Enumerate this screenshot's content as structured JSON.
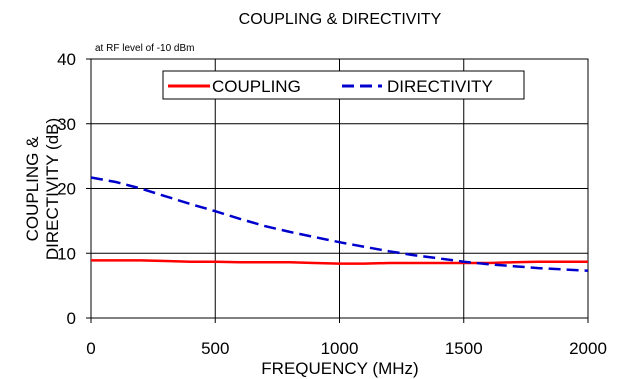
{
  "chart_data": {
    "type": "line",
    "title": "COUPLING & DIRECTIVITY",
    "annotation": "at RF level of -10 dBm",
    "xlabel": "FREQUENCY (MHz)",
    "ylabel_lines": [
      "COUPLING &",
      "DIRECTIVITY (dB)"
    ],
    "xlim": [
      0,
      2000
    ],
    "ylim": [
      0,
      40
    ],
    "xticks": [
      0,
      500,
      1000,
      1500,
      2000
    ],
    "yticks": [
      0,
      10,
      20,
      30,
      40
    ],
    "x_tick_labels": [
      "0",
      "500",
      "1000",
      "1500",
      "2000"
    ],
    "y_tick_labels": [
      "0",
      "10",
      "20",
      "30",
      "40"
    ],
    "grid": true,
    "legend_position": "top-center",
    "series": [
      {
        "name": "COUPLING",
        "color": "#ff0000",
        "style": "solid",
        "x": [
          0,
          100,
          200,
          300,
          400,
          500,
          600,
          700,
          800,
          900,
          1000,
          1100,
          1200,
          1300,
          1400,
          1500,
          1600,
          1700,
          1800,
          1900,
          2000
        ],
        "values": [
          8.9,
          8.9,
          8.9,
          8.8,
          8.7,
          8.7,
          8.6,
          8.6,
          8.6,
          8.5,
          8.4,
          8.4,
          8.5,
          8.5,
          8.5,
          8.5,
          8.5,
          8.6,
          8.7,
          8.7,
          8.7
        ]
      },
      {
        "name": "DIRECTIVITY",
        "color": "#0000cc",
        "style": "dashed",
        "x": [
          0,
          100,
          200,
          300,
          400,
          500,
          600,
          700,
          800,
          900,
          1000,
          1100,
          1200,
          1300,
          1400,
          1500,
          1600,
          1700,
          1800,
          1900,
          2000
        ],
        "values": [
          21.7,
          21.0,
          20.0,
          18.8,
          17.6,
          16.5,
          15.3,
          14.2,
          13.3,
          12.5,
          11.7,
          11.0,
          10.3,
          9.7,
          9.2,
          8.7,
          8.3,
          8.0,
          7.7,
          7.5,
          7.3
        ]
      }
    ]
  }
}
